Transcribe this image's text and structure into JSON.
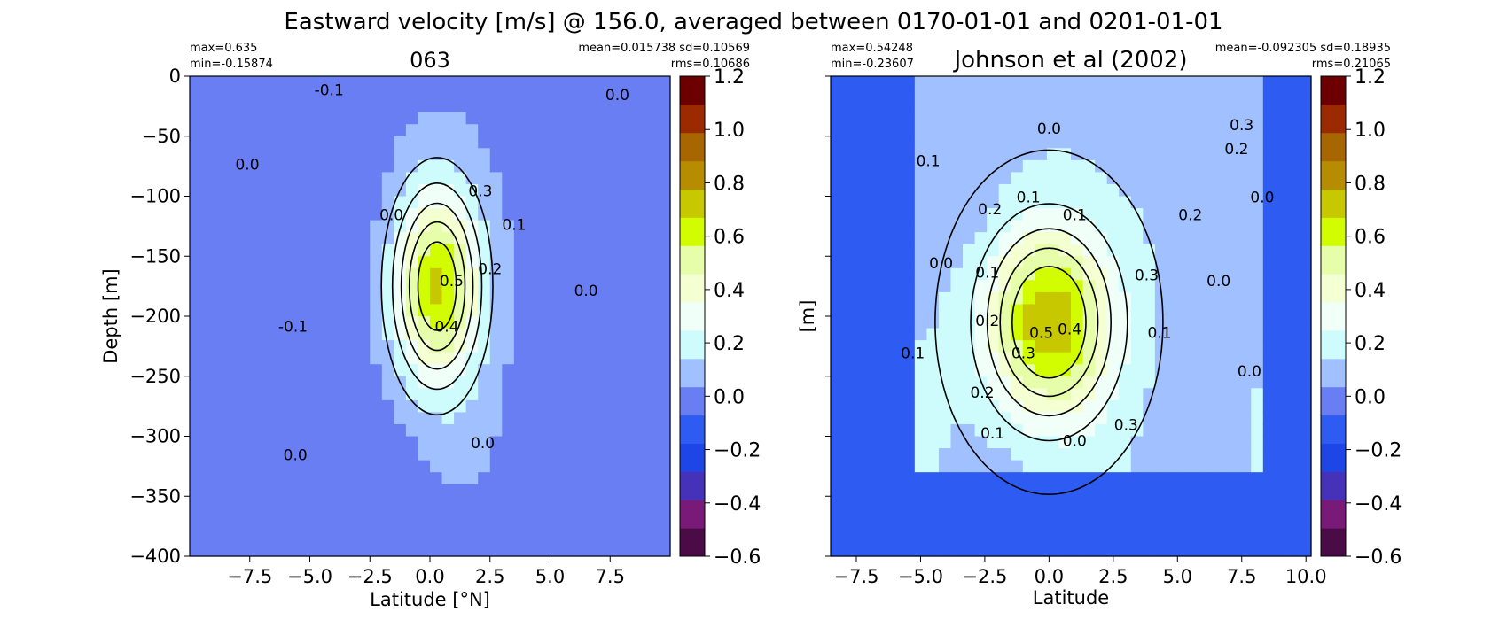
{
  "figure": {
    "suptitle": "Eastward velocity [m/s] @ 156.0, averaged between 0170-01-01 and 0201-01-01"
  },
  "colors": {
    "bins": [
      "#4a0b46",
      "#7a1a78",
      "#4632b8",
      "#1e46e6",
      "#2e5cf2",
      "#6a7ef4",
      "#a0c0ff",
      "#cefcfc",
      "#f0fff8",
      "#f4ffd2",
      "#e6fdaa",
      "#d2fd00",
      "#c8c800",
      "#b68c00",
      "#a86600",
      "#9c2a00",
      "#6c0000"
    ]
  },
  "colorbar": {
    "levels": [
      -0.6,
      -0.5,
      -0.4,
      -0.3,
      -0.2,
      -0.1,
      0.0,
      0.1,
      0.2,
      0.3,
      0.4,
      0.5,
      0.6,
      0.7,
      0.8,
      0.9,
      1.0,
      1.1,
      1.2
    ],
    "tick_labels": [
      "−0.6",
      "−0.4",
      "−0.2",
      "0.0",
      "0.2",
      "0.4",
      "0.6",
      "0.8",
      "1.0",
      "1.2"
    ]
  },
  "chart_data": [
    {
      "type": "contourf",
      "title": "063",
      "xlabel": "Latitude [°N]",
      "ylabel": "Depth [m]",
      "xlim": [
        -10,
        10
      ],
      "ylim": [
        -400,
        0
      ],
      "xticks": [
        -7.5,
        -5.0,
        -2.5,
        0.0,
        2.5,
        5.0,
        7.5
      ],
      "xtick_labels": [
        "−7.5",
        "−5.0",
        "−2.5",
        "0.0",
        "2.5",
        "5.0",
        "7.5"
      ],
      "yticks": [
        0,
        -50,
        -100,
        -150,
        -200,
        -250,
        -300,
        -350,
        -400
      ],
      "ytick_labels": [
        "0",
        "−50",
        "−100",
        "−150",
        "−200",
        "−250",
        "−300",
        "−350",
        "−400"
      ],
      "stats_left": [
        "max=0.635",
        "min=-0.15874"
      ],
      "stats_right": [
        "mean=0.015738 sd=0.10569",
        "rms=0.10686"
      ],
      "value_range": {
        "max": 0.635,
        "min": -0.15874
      },
      "jets": [
        {
          "lat": 0.3,
          "depth": -175,
          "amp": 0.64,
          "sigma_lat": 1.3,
          "sigma_depth": 60
        }
      ],
      "background": -0.03,
      "contour_labels": [
        {
          "text": "-0.1",
          "lat": -4.2,
          "depth": -16
        },
        {
          "text": "0.0",
          "lat": -7.6,
          "depth": -78
        },
        {
          "text": "0.0",
          "lat": -1.6,
          "depth": -120
        },
        {
          "text": "0.3",
          "lat": 2.1,
          "depth": -100
        },
        {
          "text": "0.1",
          "lat": 3.5,
          "depth": -128
        },
        {
          "text": "0.2",
          "lat": 2.5,
          "depth": -165
        },
        {
          "text": "0.5",
          "lat": 0.9,
          "depth": -175
        },
        {
          "text": "0.4",
          "lat": 0.7,
          "depth": -213
        },
        {
          "text": "0.0",
          "lat": 6.5,
          "depth": -183
        },
        {
          "text": "-0.1",
          "lat": -5.7,
          "depth": -213
        },
        {
          "text": "0.0",
          "lat": -5.6,
          "depth": -320
        },
        {
          "text": "0.0",
          "lat": 2.2,
          "depth": -310
        },
        {
          "text": "0.0",
          "lat": 7.8,
          "depth": -20
        }
      ]
    },
    {
      "type": "contourf",
      "title": "Johnson et al (2002)",
      "xlabel": "Latitude",
      "ylabel": "[m]",
      "xlim": [
        -8.5,
        10.2
      ],
      "ylim": [
        -400,
        0
      ],
      "xticks": [
        -7.5,
        -5.0,
        -2.5,
        0.0,
        2.5,
        5.0,
        7.5,
        10.0
      ],
      "xtick_labels": [
        "−7.5",
        "−5.0",
        "−2.5",
        "0.0",
        "2.5",
        "5.0",
        "7.5",
        "10.0"
      ],
      "yticks": [
        0,
        -50,
        -100,
        -150,
        -200,
        -250,
        -300,
        -350,
        -400
      ],
      "stats_left": [
        "max=0.54248",
        "min=-0.23607"
      ],
      "stats_right": [
        "mean=-0.092305 sd=0.18935",
        "rms=0.21065"
      ],
      "value_range": {
        "max": 0.54248,
        "min": -0.23607
      },
      "data_domain": {
        "lat_min": -5.3,
        "lat_max": 8.1
      },
      "jets": [
        {
          "lat": 0.0,
          "depth": -205,
          "amp": 0.6,
          "sigma_lat": 1.7,
          "sigma_depth": 55
        }
      ],
      "background": 0.08,
      "contour_labels": [
        {
          "text": "0.0",
          "lat": 0.0,
          "depth": -48
        },
        {
          "text": "0.3",
          "lat": 7.5,
          "depth": -45
        },
        {
          "text": "0.2",
          "lat": 7.3,
          "depth": -65
        },
        {
          "text": "0.1",
          "lat": -4.7,
          "depth": -75
        },
        {
          "text": "0.0",
          "lat": 8.3,
          "depth": -105
        },
        {
          "text": "0.2",
          "lat": -2.3,
          "depth": -115
        },
        {
          "text": "0.1",
          "lat": -0.8,
          "depth": -105
        },
        {
          "text": "0.1",
          "lat": 1.0,
          "depth": -120
        },
        {
          "text": "0.2",
          "lat": 5.5,
          "depth": -120
        },
        {
          "text": "0.0",
          "lat": -4.2,
          "depth": -160
        },
        {
          "text": "0.1",
          "lat": -2.4,
          "depth": -168
        },
        {
          "text": "0.3",
          "lat": 3.8,
          "depth": -170
        },
        {
          "text": "0.0",
          "lat": 6.6,
          "depth": -175
        },
        {
          "text": "0.2",
          "lat": -2.4,
          "depth": -208
        },
        {
          "text": "0.5",
          "lat": -0.3,
          "depth": -218
        },
        {
          "text": "0.4",
          "lat": 0.8,
          "depth": -215
        },
        {
          "text": "0.3",
          "lat": -1.0,
          "depth": -235
        },
        {
          "text": "0.1",
          "lat": 4.3,
          "depth": -218
        },
        {
          "text": "0.1",
          "lat": -5.3,
          "depth": -235
        },
        {
          "text": "0.0",
          "lat": 7.8,
          "depth": -250
        },
        {
          "text": "0.2",
          "lat": -2.6,
          "depth": -268
        },
        {
          "text": "0.1",
          "lat": -2.2,
          "depth": -302
        },
        {
          "text": "0.3",
          "lat": 3.0,
          "depth": -295
        },
        {
          "text": "0.0",
          "lat": 1.0,
          "depth": -308
        }
      ]
    }
  ]
}
